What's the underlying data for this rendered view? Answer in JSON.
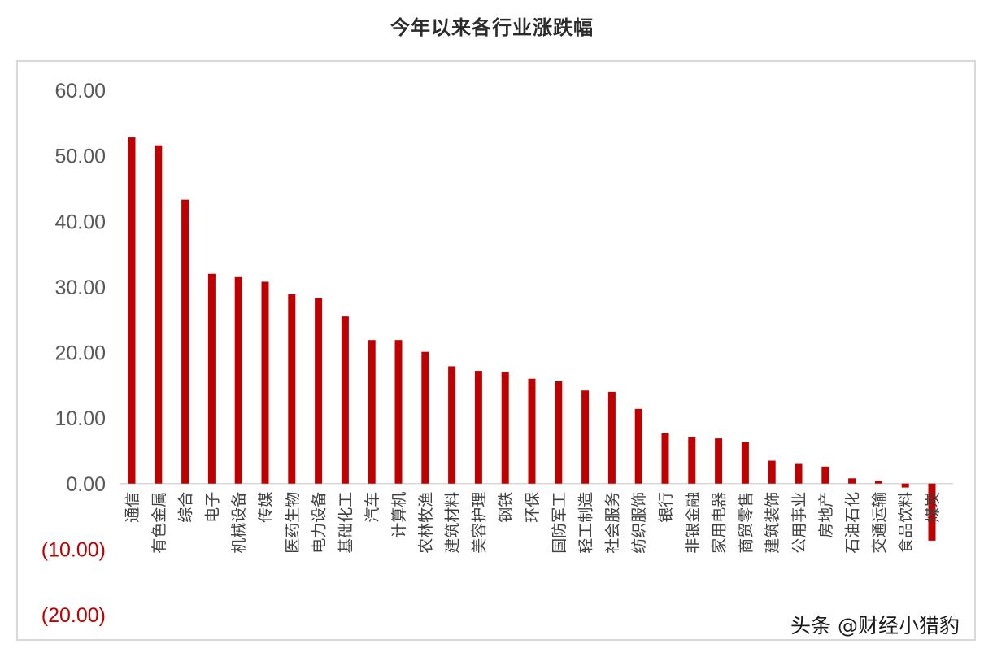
{
  "chart_data": {
    "type": "bar",
    "title": "今年以来各行业涨跌幅",
    "categories": [
      "通信",
      "有色金属",
      "综合",
      "电子",
      "机械设备",
      "传媒",
      "医药生物",
      "电力设备",
      "基础化工",
      "汽车",
      "计算机",
      "农林牧渔",
      "建筑材料",
      "美容护理",
      "钢铁",
      "环保",
      "国防军工",
      "轻工制造",
      "社会服务",
      "纺织服饰",
      "银行",
      "非银金融",
      "家用电器",
      "商贸零售",
      "建筑装饰",
      "公用事业",
      "房地产",
      "石油石化",
      "交通运输",
      "食品饮料",
      "煤炭"
    ],
    "values": [
      52.8,
      51.6,
      43.3,
      32.0,
      31.5,
      30.8,
      28.9,
      28.3,
      25.5,
      21.9,
      21.9,
      20.1,
      17.9,
      17.2,
      17.0,
      16.0,
      15.6,
      14.2,
      14.0,
      11.4,
      7.7,
      7.1,
      6.9,
      6.3,
      3.5,
      3.0,
      2.6,
      0.8,
      0.4,
      -0.6,
      -8.7
    ],
    "ylim": [
      -20,
      60
    ],
    "yticks": [
      "(20.00)",
      "(10.00)",
      "0.00",
      "10.00",
      "20.00",
      "30.00",
      "40.00",
      "50.00",
      "60.00"
    ],
    "grid": false,
    "bar_color": "#c00000",
    "negative_tick_color": "#c00000",
    "positive_tick_color": "#595959",
    "category_label_color": "#404040"
  },
  "watermark": "头条 @财经小猎豹"
}
